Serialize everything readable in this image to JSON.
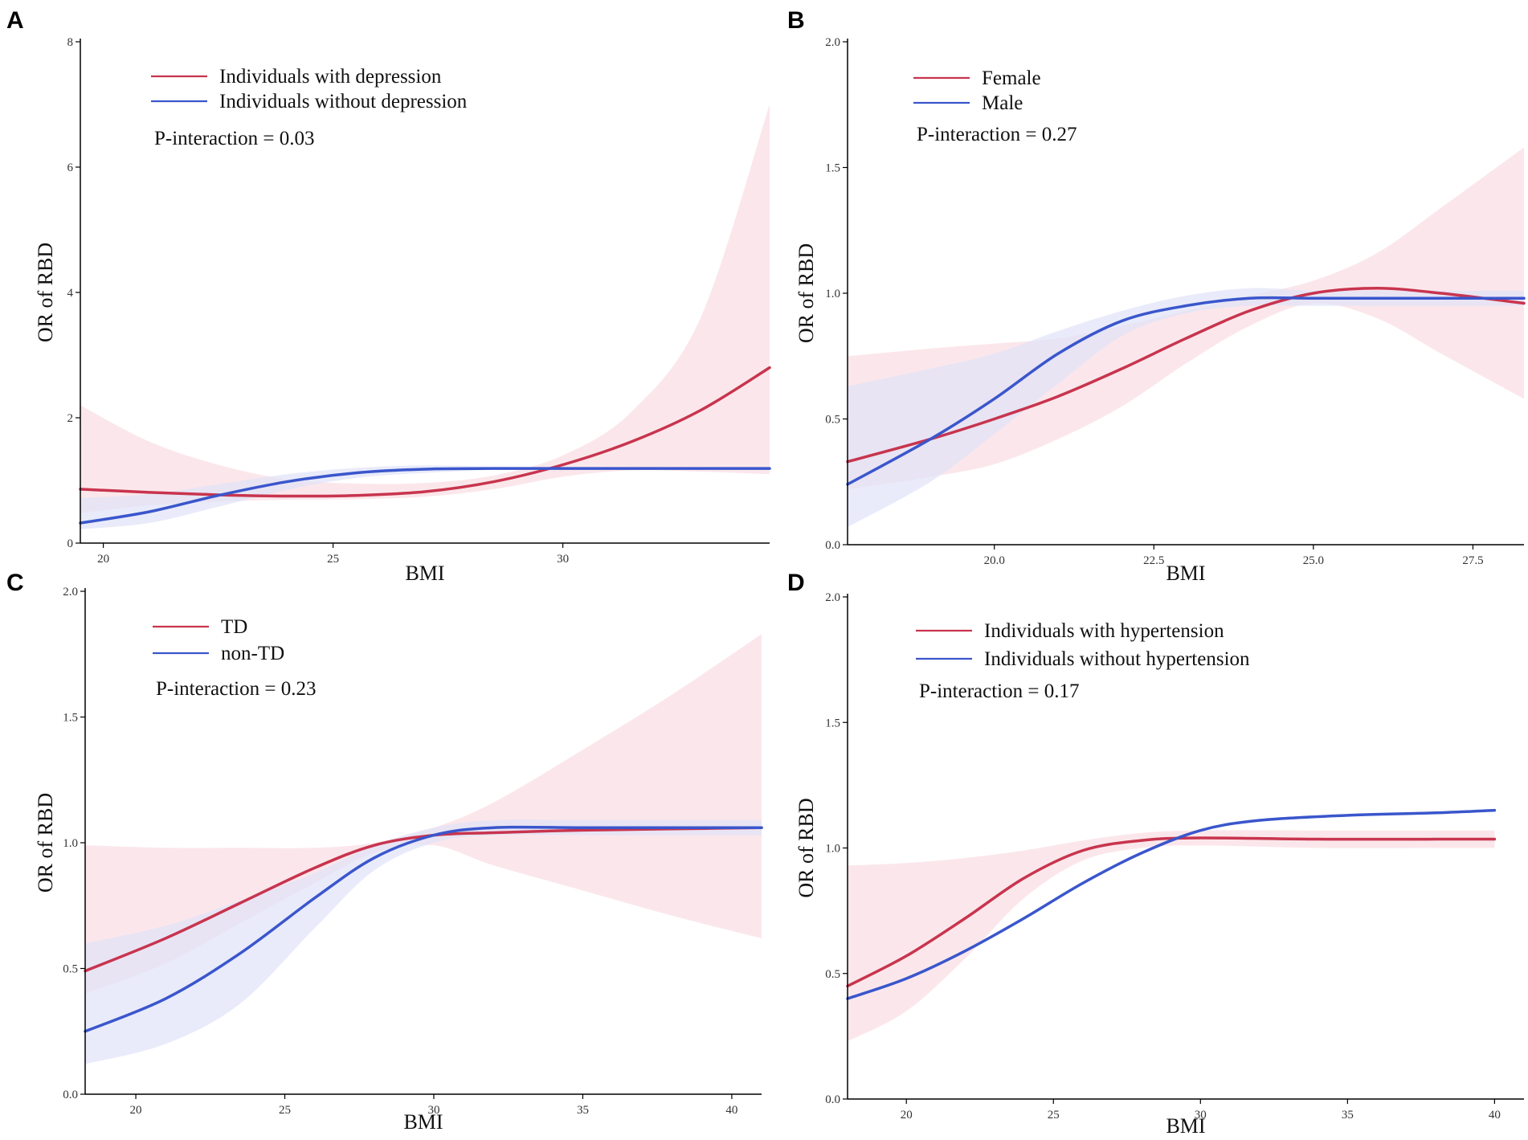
{
  "chart_data": [
    {
      "panel": "A",
      "type": "line",
      "xlabel": "BMI",
      "ylabel": "OR of RBD",
      "xlim": [
        19.5,
        34.5
      ],
      "ylim": [
        0,
        8
      ],
      "xticks": [
        20,
        25,
        30
      ],
      "yticks": [
        0,
        2,
        4,
        6,
        8
      ],
      "ytick_labels": [
        "0",
        "2",
        "4",
        "6",
        "8"
      ],
      "xtick_labels": [
        "20",
        "25",
        "30"
      ],
      "annotation": "P-interaction = 0.03",
      "legend_position": "top-left",
      "series": [
        {
          "name": "Individuals with depression",
          "color": "#c8344e",
          "band_color": "#f9dde3",
          "x": [
            19.5,
            21,
            22.5,
            24,
            25.5,
            27,
            28.5,
            30,
            31.5,
            33,
            34.5
          ],
          "y": [
            0.86,
            0.81,
            0.77,
            0.75,
            0.76,
            0.82,
            0.98,
            1.25,
            1.62,
            2.12,
            2.8
          ],
          "lower": [
            0.48,
            0.6,
            0.66,
            0.69,
            0.7,
            0.74,
            0.86,
            1.06,
            1.16,
            1.14,
            1.1
          ],
          "upper": [
            2.2,
            1.62,
            1.25,
            1.02,
            0.95,
            0.96,
            1.08,
            1.4,
            2.1,
            3.6,
            7.0
          ]
        },
        {
          "name": "Individuals without depression",
          "color": "#3a56cc",
          "band_color": "#dfe3f8",
          "x": [
            19.5,
            21,
            22.5,
            24,
            25.5,
            27,
            28.5,
            30,
            31.5,
            33,
            34.5
          ],
          "y": [
            0.32,
            0.5,
            0.76,
            0.98,
            1.12,
            1.18,
            1.19,
            1.19,
            1.19,
            1.19,
            1.19
          ],
          "lower": [
            0.22,
            0.32,
            0.58,
            0.85,
            1.04,
            1.12,
            1.17,
            1.18,
            1.18,
            1.18,
            1.18
          ],
          "upper": [
            0.72,
            0.78,
            0.94,
            1.1,
            1.2,
            1.24,
            1.22,
            1.21,
            1.2,
            1.2,
            1.2
          ]
        }
      ]
    },
    {
      "panel": "B",
      "type": "line",
      "xlabel": "BMI",
      "ylabel": "OR of RBD",
      "xlim": [
        17.7,
        28.3
      ],
      "ylim": [
        0,
        2.0
      ],
      "xticks": [
        20.0,
        22.5,
        25.0,
        27.5
      ],
      "xtick_labels": [
        "20.0",
        "22.5",
        "25.0",
        "27.5"
      ],
      "yticks": [
        0,
        0.5,
        1.0,
        1.5,
        2.0
      ],
      "ytick_labels": [
        "0.0",
        "0.5",
        "1.0",
        "1.5",
        "2.0"
      ],
      "annotation": "P-interaction = 0.27",
      "legend_position": "top-left",
      "series": [
        {
          "name": "Female",
          "color": "#c8344e",
          "band_color": "#f9dde3",
          "x": [
            17.7,
            19,
            20,
            21,
            22,
            23,
            24,
            25,
            26,
            27,
            28.3
          ],
          "y": [
            0.33,
            0.42,
            0.5,
            0.59,
            0.7,
            0.82,
            0.93,
            1.0,
            1.02,
            1.0,
            0.96
          ],
          "lower": [
            0.22,
            0.27,
            0.32,
            0.42,
            0.55,
            0.72,
            0.87,
            0.96,
            0.9,
            0.76,
            0.58
          ],
          "upper": [
            0.75,
            0.78,
            0.8,
            0.82,
            0.87,
            0.93,
            0.99,
            1.05,
            1.16,
            1.34,
            1.58
          ]
        },
        {
          "name": "Male",
          "color": "#3a56cc",
          "band_color": "#dfe3f8",
          "x": [
            17.7,
            19,
            20,
            21,
            22,
            23,
            24,
            25,
            26,
            27,
            28.3
          ],
          "y": [
            0.24,
            0.42,
            0.58,
            0.76,
            0.89,
            0.95,
            0.98,
            0.98,
            0.98,
            0.98,
            0.98
          ],
          "lower": [
            0.07,
            0.25,
            0.44,
            0.64,
            0.83,
            0.92,
            0.95,
            0.95,
            0.95,
            0.95,
            0.95
          ],
          "upper": [
            0.63,
            0.7,
            0.76,
            0.85,
            0.93,
            0.99,
            1.02,
            1.01,
            1.01,
            1.01,
            1.01
          ]
        }
      ]
    },
    {
      "panel": "C",
      "type": "line",
      "xlabel": "BMI",
      "ylabel": "OR of RBD",
      "xlim": [
        18.3,
        41
      ],
      "ylim": [
        0,
        2.0
      ],
      "xticks": [
        20,
        25,
        30,
        35,
        40
      ],
      "xtick_labels": [
        "20",
        "25",
        "30",
        "35",
        "40"
      ],
      "yticks": [
        0,
        0.5,
        1.0,
        1.5,
        2.0
      ],
      "ytick_labels": [
        "0.0",
        "0.5",
        "1.0",
        "1.5",
        "2.0"
      ],
      "annotation": "P-interaction = 0.23",
      "legend_position": "top-left",
      "series": [
        {
          "name": "TD",
          "color": "#c8344e",
          "band_color": "#f9dde3",
          "x": [
            18.3,
            21,
            23.5,
            26,
            28,
            30,
            32,
            35,
            38,
            41
          ],
          "y": [
            0.49,
            0.62,
            0.76,
            0.9,
            0.99,
            1.03,
            1.04,
            1.05,
            1.055,
            1.06
          ],
          "lower": [
            0.4,
            0.52,
            0.68,
            0.84,
            0.96,
            0.99,
            0.91,
            0.81,
            0.71,
            0.62
          ],
          "upper": [
            0.99,
            0.98,
            0.98,
            0.98,
            1.0,
            1.06,
            1.16,
            1.37,
            1.59,
            1.83
          ]
        },
        {
          "name": "non-TD",
          "color": "#3a56cc",
          "band_color": "#dfe3f8",
          "x": [
            18.3,
            21,
            23.5,
            26,
            28,
            30,
            32,
            35,
            38,
            41
          ],
          "y": [
            0.25,
            0.38,
            0.56,
            0.78,
            0.94,
            1.03,
            1.06,
            1.06,
            1.06,
            1.06
          ],
          "lower": [
            0.12,
            0.2,
            0.36,
            0.66,
            0.89,
            1.0,
            1.03,
            1.03,
            1.03,
            1.03
          ],
          "upper": [
            0.6,
            0.67,
            0.77,
            0.88,
            0.99,
            1.06,
            1.09,
            1.09,
            1.09,
            1.09
          ]
        }
      ]
    },
    {
      "panel": "D",
      "type": "line",
      "xlabel": "BMI",
      "ylabel": "OR of RBD",
      "xlim": [
        18,
        41
      ],
      "ylim": [
        0,
        2.0
      ],
      "xticks": [
        20,
        25,
        30,
        35,
        40
      ],
      "xtick_labels": [
        "20",
        "25",
        "30",
        "35",
        "40"
      ],
      "yticks": [
        0,
        0.5,
        1.0,
        1.5,
        2.0
      ],
      "ytick_labels": [
        "0.0",
        "0.5",
        "1.0",
        "1.5",
        "2.0"
      ],
      "annotation": "P-interaction = 0.17",
      "legend_position": "top-left",
      "series": [
        {
          "name": "Individuals with hypertension",
          "color": "#c8344e",
          "band_color": "#f9dde3",
          "x": [
            18,
            20,
            22,
            24,
            26,
            28,
            30,
            34,
            38,
            40
          ],
          "y": [
            0.45,
            0.57,
            0.72,
            0.88,
            0.99,
            1.03,
            1.04,
            1.035,
            1.035,
            1.035
          ],
          "lower": [
            0.23,
            0.35,
            0.56,
            0.8,
            0.95,
            1.0,
            1.01,
            1.0,
            1.0,
            1.0
          ],
          "upper": [
            0.93,
            0.94,
            0.96,
            0.99,
            1.03,
            1.06,
            1.07,
            1.07,
            1.07,
            1.07
          ]
        },
        {
          "name": "Individuals without hypertension",
          "color": "#3a56cc",
          "band_color": "#dfe3f8",
          "x": [
            18,
            20,
            22,
            24,
            26,
            28,
            30,
            32,
            35,
            38,
            40
          ],
          "y": [
            0.4,
            0.48,
            0.59,
            0.72,
            0.86,
            0.98,
            1.07,
            1.11,
            1.13,
            1.14,
            1.15
          ],
          "lower": [
            0.4,
            0.48,
            0.59,
            0.72,
            0.86,
            0.98,
            1.07,
            1.11,
            1.13,
            1.14,
            1.15
          ],
          "upper": [
            0.4,
            0.48,
            0.59,
            0.72,
            0.86,
            0.98,
            1.07,
            1.11,
            1.13,
            1.14,
            1.15
          ]
        }
      ]
    }
  ]
}
